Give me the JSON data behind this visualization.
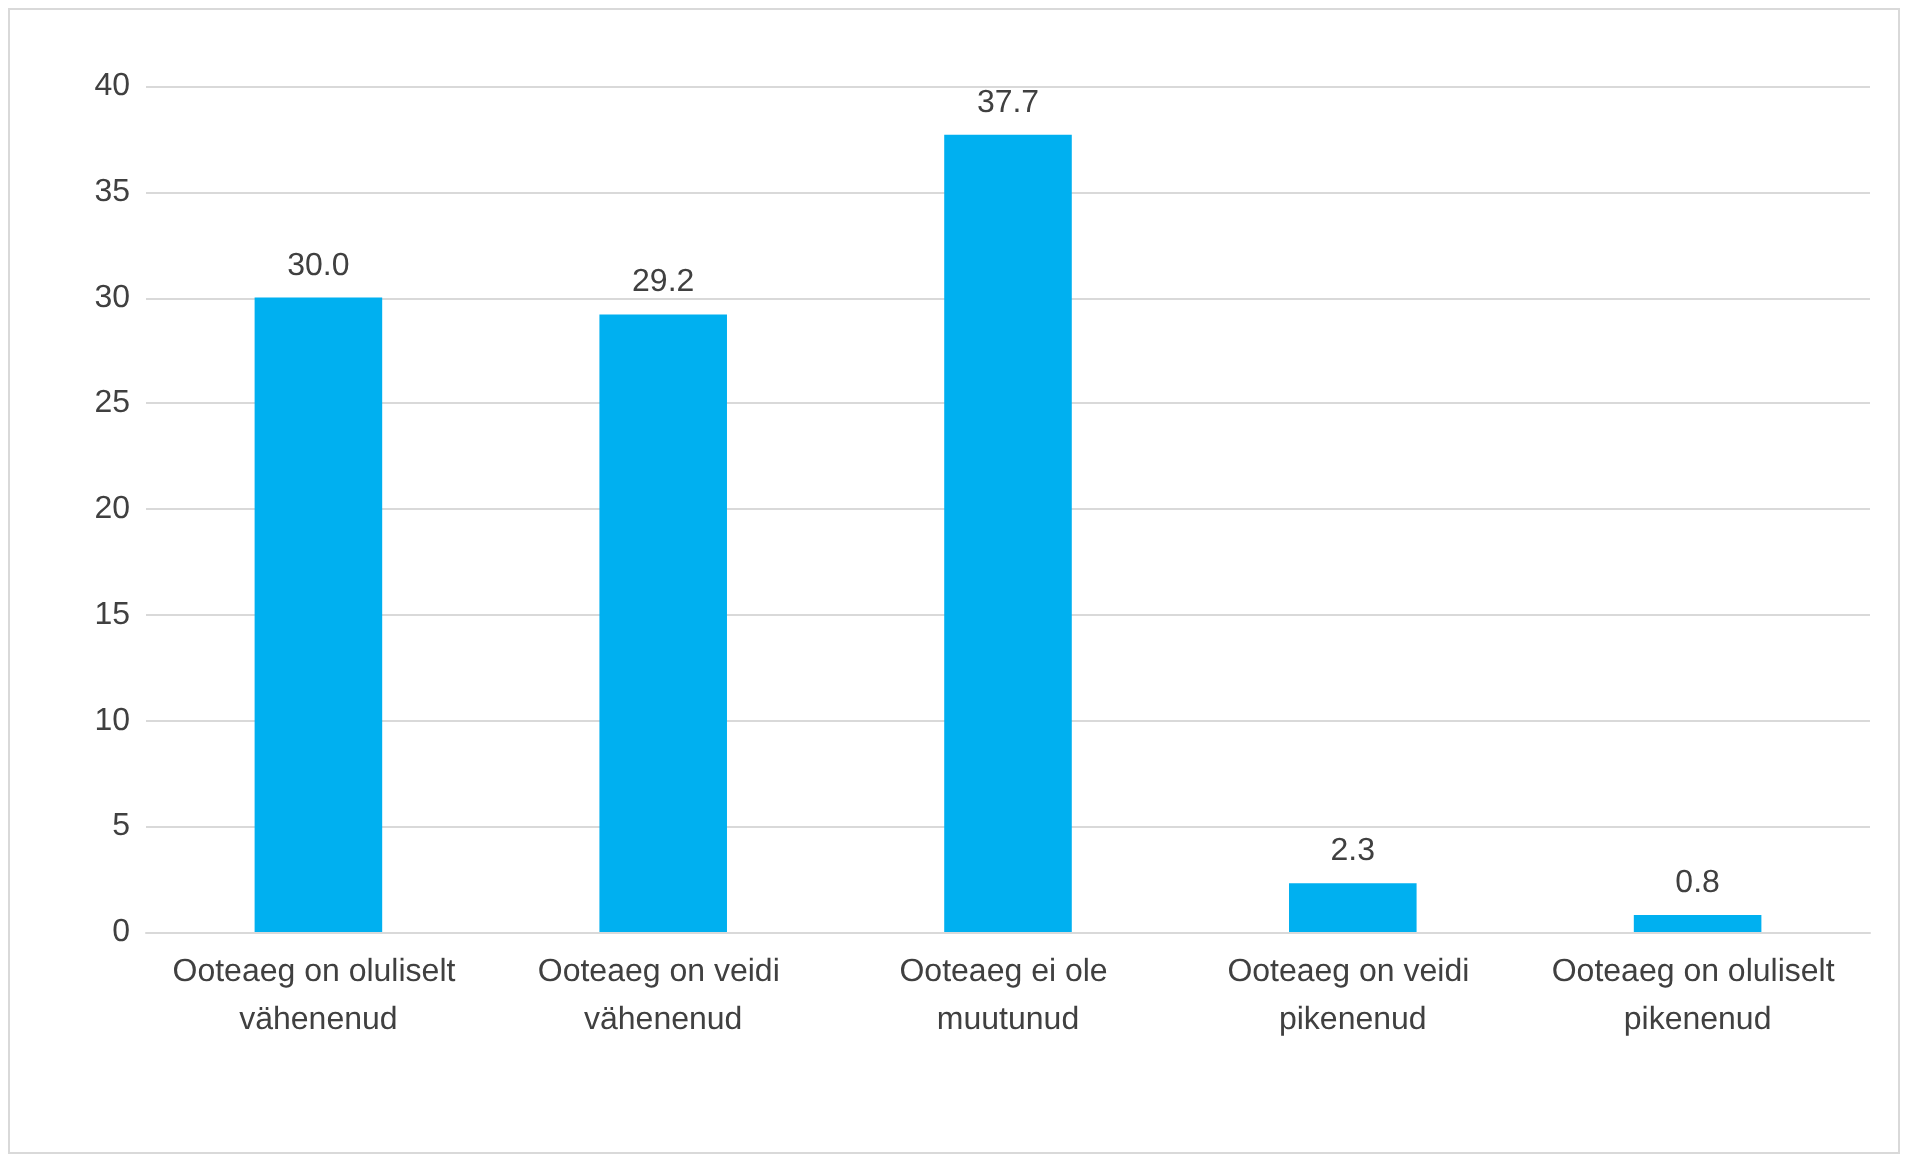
{
  "chart_data": {
    "type": "bar",
    "categories": [
      "Ooteaeg on oluliselt vähenenud",
      "Ooteaeg on veidi vähenenud",
      "Ooteaeg ei ole muutunud",
      "Ooteaeg on veidi pikenenud",
      "Ooteaeg on oluliselt pikenenud"
    ],
    "values": [
      30.0,
      29.2,
      37.7,
      2.3,
      0.8
    ],
    "value_labels": [
      "30.0",
      "29.2",
      "37.7",
      "2.3",
      "0.8"
    ],
    "color": "#00b0f0",
    "ylim": [
      0,
      40
    ],
    "yticks": [
      0,
      5,
      10,
      15,
      20,
      25,
      30,
      35,
      40
    ],
    "grid": "y"
  }
}
